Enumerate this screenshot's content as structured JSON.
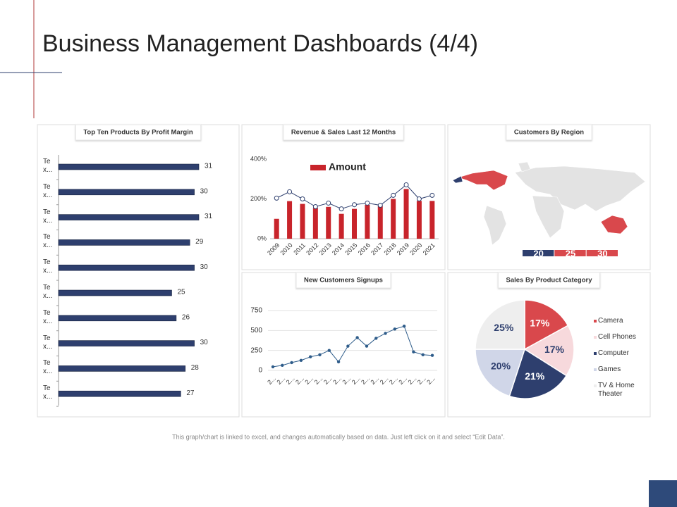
{
  "title": "Business Management Dashboards (4/4)",
  "footnote": "This graph/chart is linked to excel, and changes automatically based on data. Just left click on it and select “Edit Data”.",
  "chart_data": [
    {
      "type": "hbar",
      "title": "Top Ten Products By Profit Margin",
      "categories": [
        "Te x...",
        "Te x...",
        "Te x...",
        "Te x...",
        "Te x...",
        "Te x...",
        "Te x...",
        "Te x...",
        "Te x...",
        "Te x..."
      ],
      "values": [
        31,
        30,
        31,
        29,
        30,
        25,
        26,
        30,
        28,
        27
      ],
      "color": "#2e3f6e"
    },
    {
      "type": "combo",
      "title": "Revenue & Sales Last 12 Months",
      "categories": [
        "2009",
        "2010",
        "2011",
        "2012",
        "2013",
        "2014",
        "2015",
        "2016",
        "2017",
        "2018",
        "2019",
        "2020",
        "2021"
      ],
      "series": [
        {
          "name": "Amount",
          "type": "bar",
          "color": "#c8242b",
          "values": [
            100,
            189,
            175,
            155,
            160,
            125,
            150,
            170,
            165,
            200,
            250,
            190,
            190
          ]
        },
        {
          "type": "line",
          "color": "#2e3f6e",
          "values": [
            204,
            236,
            200,
            161,
            179,
            150,
            171,
            179,
            168,
            218,
            271,
            200,
            218
          ]
        }
      ],
      "ylim": [
        0,
        400
      ],
      "yticks": [
        {
          "value": 0,
          "label": "0%"
        },
        {
          "value": 200,
          "label": "200%"
        },
        {
          "value": 400,
          "label": "400%"
        }
      ]
    },
    {
      "type": "map",
      "title": "Customers By Region",
      "color": "#d9484c",
      "scale": [
        20,
        25,
        30
      ]
    },
    {
      "type": "line",
      "title": "New Customers Signups",
      "categories": [
        "2...",
        "2...",
        "2...",
        "2...",
        "2...",
        "2...",
        "2...",
        "2...",
        "2...",
        "2...",
        "2...",
        "2...",
        "2...",
        "2...",
        "2...",
        "2...",
        "2...",
        "2..."
      ],
      "values": [
        45,
        63,
        98,
        125,
        170,
        196,
        250,
        107,
        304,
        411,
        304,
        402,
        464,
        518,
        554,
        232,
        196,
        188
      ],
      "color": "#2e5c8a",
      "ylim": [
        0,
        750
      ],
      "yticks": [
        0,
        250,
        500,
        750
      ],
      "grid": true
    },
    {
      "type": "pie",
      "title": "Sales By Product Category",
      "categories": [
        "Camera",
        "Cell Phones",
        "Computer",
        "Games",
        "TV & Home Theater"
      ],
      "values": [
        17,
        17,
        21,
        20,
        25
      ],
      "value_labels": [
        "17%",
        "17%",
        "21%",
        "20%",
        "25%"
      ],
      "colors": [
        "#d9484c",
        "#f7d9dc",
        "#2e3f6e",
        "#d0d6e8",
        "#eeeeee"
      ]
    }
  ]
}
